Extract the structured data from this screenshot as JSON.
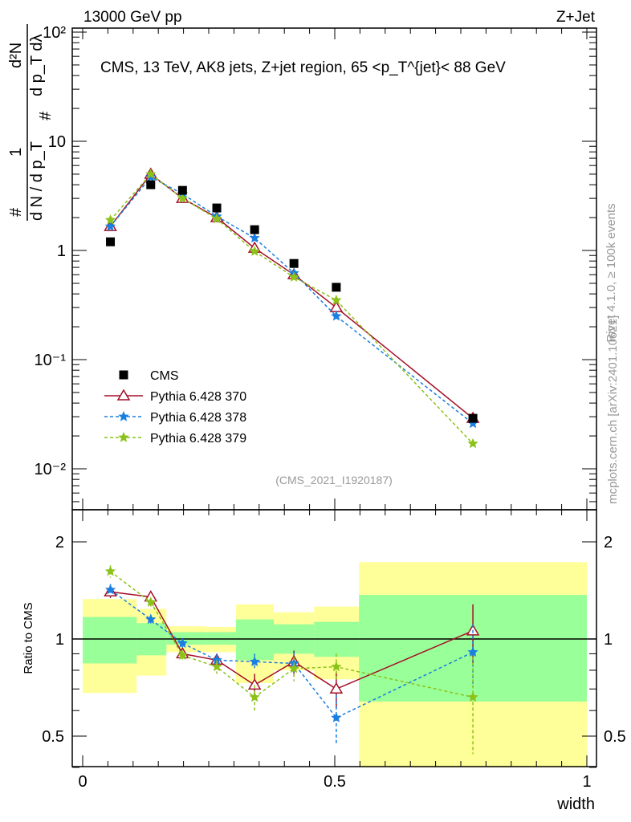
{
  "header": {
    "left": "13000 GeV pp",
    "right": "Z+Jet"
  },
  "side": {
    "rivet": "Rivet 4.1.0, ≥ 100k events",
    "mcplots": "mcplots.cern.ch [arXiv:2401.10621]"
  },
  "chart_data": [
    {
      "type": "line",
      "title": "CMS, 13 TeV, AK8 jets, Z+jet region, 65 <p_T^{jet}< 88 GeV",
      "ylabel": "1/(dN/dpT) d²N/(dpT dλ)",
      "ylabel_parts": {
        "top": "d²N",
        "mid": "d p_T  dλ",
        "num": "1",
        "den": "d N / d p_T",
        "hash": "#"
      },
      "yscale": "log",
      "ylim": [
        0.004,
        110
      ],
      "xlim": [
        -0.02,
        1.02
      ],
      "yticks": [
        {
          "v": 100,
          "label": "10²"
        },
        {
          "v": 10,
          "label": "10"
        },
        {
          "v": 1,
          "label": "1"
        },
        {
          "v": 0.1,
          "label": "10⁻¹"
        },
        {
          "v": 0.01,
          "label": "10⁻²"
        }
      ],
      "annotation": "(CMS_2021_I1920187)",
      "legend_position": "lower-left",
      "x": [
        0.055,
        0.135,
        0.198,
        0.266,
        0.341,
        0.419,
        0.503,
        0.774
      ],
      "series": [
        {
          "name": "CMS",
          "color": "#000000",
          "marker": "square",
          "values": [
            1.2,
            4.0,
            3.55,
            2.45,
            1.55,
            0.76,
            0.46,
            0.029
          ]
        },
        {
          "name": "Pythia 6.428 370",
          "color": "#a50f28",
          "marker": "triangle",
          "dash": "none",
          "values": [
            1.66,
            5.0,
            3.0,
            2.0,
            1.05,
            0.6,
            0.3,
            0.029
          ]
        },
        {
          "name": "Pythia 6.428 378",
          "color": "#1a7fe0",
          "marker": "star",
          "dash": "4,3",
          "values": [
            1.66,
            4.7,
            3.3,
            2.05,
            1.3,
            0.62,
            0.25,
            0.026
          ]
        },
        {
          "name": "Pythia 6.428 379",
          "color": "#8cc21a",
          "marker": "star",
          "dash": "4,3",
          "values": [
            1.9,
            5.0,
            3.0,
            1.95,
            0.98,
            0.57,
            0.35,
            0.017
          ]
        }
      ]
    },
    {
      "type": "line",
      "ylabel": "Ratio to CMS",
      "xlabel": "width",
      "yscale": "log",
      "ylim": [
        0.4,
        2.5
      ],
      "yticks": [
        {
          "v": 2,
          "label": "2"
        },
        {
          "v": 1,
          "label": "1"
        },
        {
          "v": 0.5,
          "label": "0.5"
        }
      ],
      "xticks": [
        {
          "v": 0,
          "label": "0"
        },
        {
          "v": 0.5,
          "label": "0.5"
        },
        {
          "v": 1,
          "label": "1"
        }
      ],
      "bins": [
        0,
        0.107,
        0.166,
        0.244,
        0.304,
        0.379,
        0.459,
        0.548,
        1.0
      ],
      "band_outer": [
        [
          0.68,
          1.33
        ],
        [
          0.77,
          1.24
        ],
        [
          0.91,
          1.095
        ],
        [
          0.91,
          1.09
        ],
        [
          0.73,
          1.28
        ],
        [
          0.8,
          1.21
        ],
        [
          0.75,
          1.26
        ],
        [
          0.4,
          1.73
        ]
      ],
      "band_inner": [
        [
          0.84,
          1.17
        ],
        [
          0.89,
          1.12
        ],
        [
          0.96,
          1.05
        ],
        [
          0.96,
          1.05
        ],
        [
          0.86,
          1.15
        ],
        [
          0.9,
          1.11
        ],
        [
          0.88,
          1.13
        ],
        [
          0.64,
          1.37
        ]
      ],
      "x": [
        0.055,
        0.135,
        0.198,
        0.266,
        0.341,
        0.419,
        0.503,
        0.774
      ],
      "series": [
        {
          "name": "Pythia 6.428 370",
          "values": [
            1.4,
            1.35,
            0.9,
            0.86,
            0.72,
            0.85,
            0.7,
            1.06
          ],
          "err": [
            0.06,
            0.04,
            0.03,
            0.04,
            0.06,
            0.07,
            0.09,
            0.22
          ]
        },
        {
          "name": "Pythia 6.428 378",
          "values": [
            1.42,
            1.15,
            0.97,
            0.86,
            0.85,
            0.84,
            0.57,
            0.91
          ],
          "err": [
            0.06,
            0.04,
            0.03,
            0.04,
            0.05,
            0.07,
            0.1,
            0.2
          ]
        },
        {
          "name": "Pythia 6.428 379",
          "values": [
            1.62,
            1.3,
            0.89,
            0.82,
            0.66,
            0.81,
            0.82,
            0.66
          ],
          "err": [
            0.07,
            0.04,
            0.03,
            0.04,
            0.06,
            0.07,
            0.08,
            0.22
          ]
        }
      ]
    }
  ]
}
